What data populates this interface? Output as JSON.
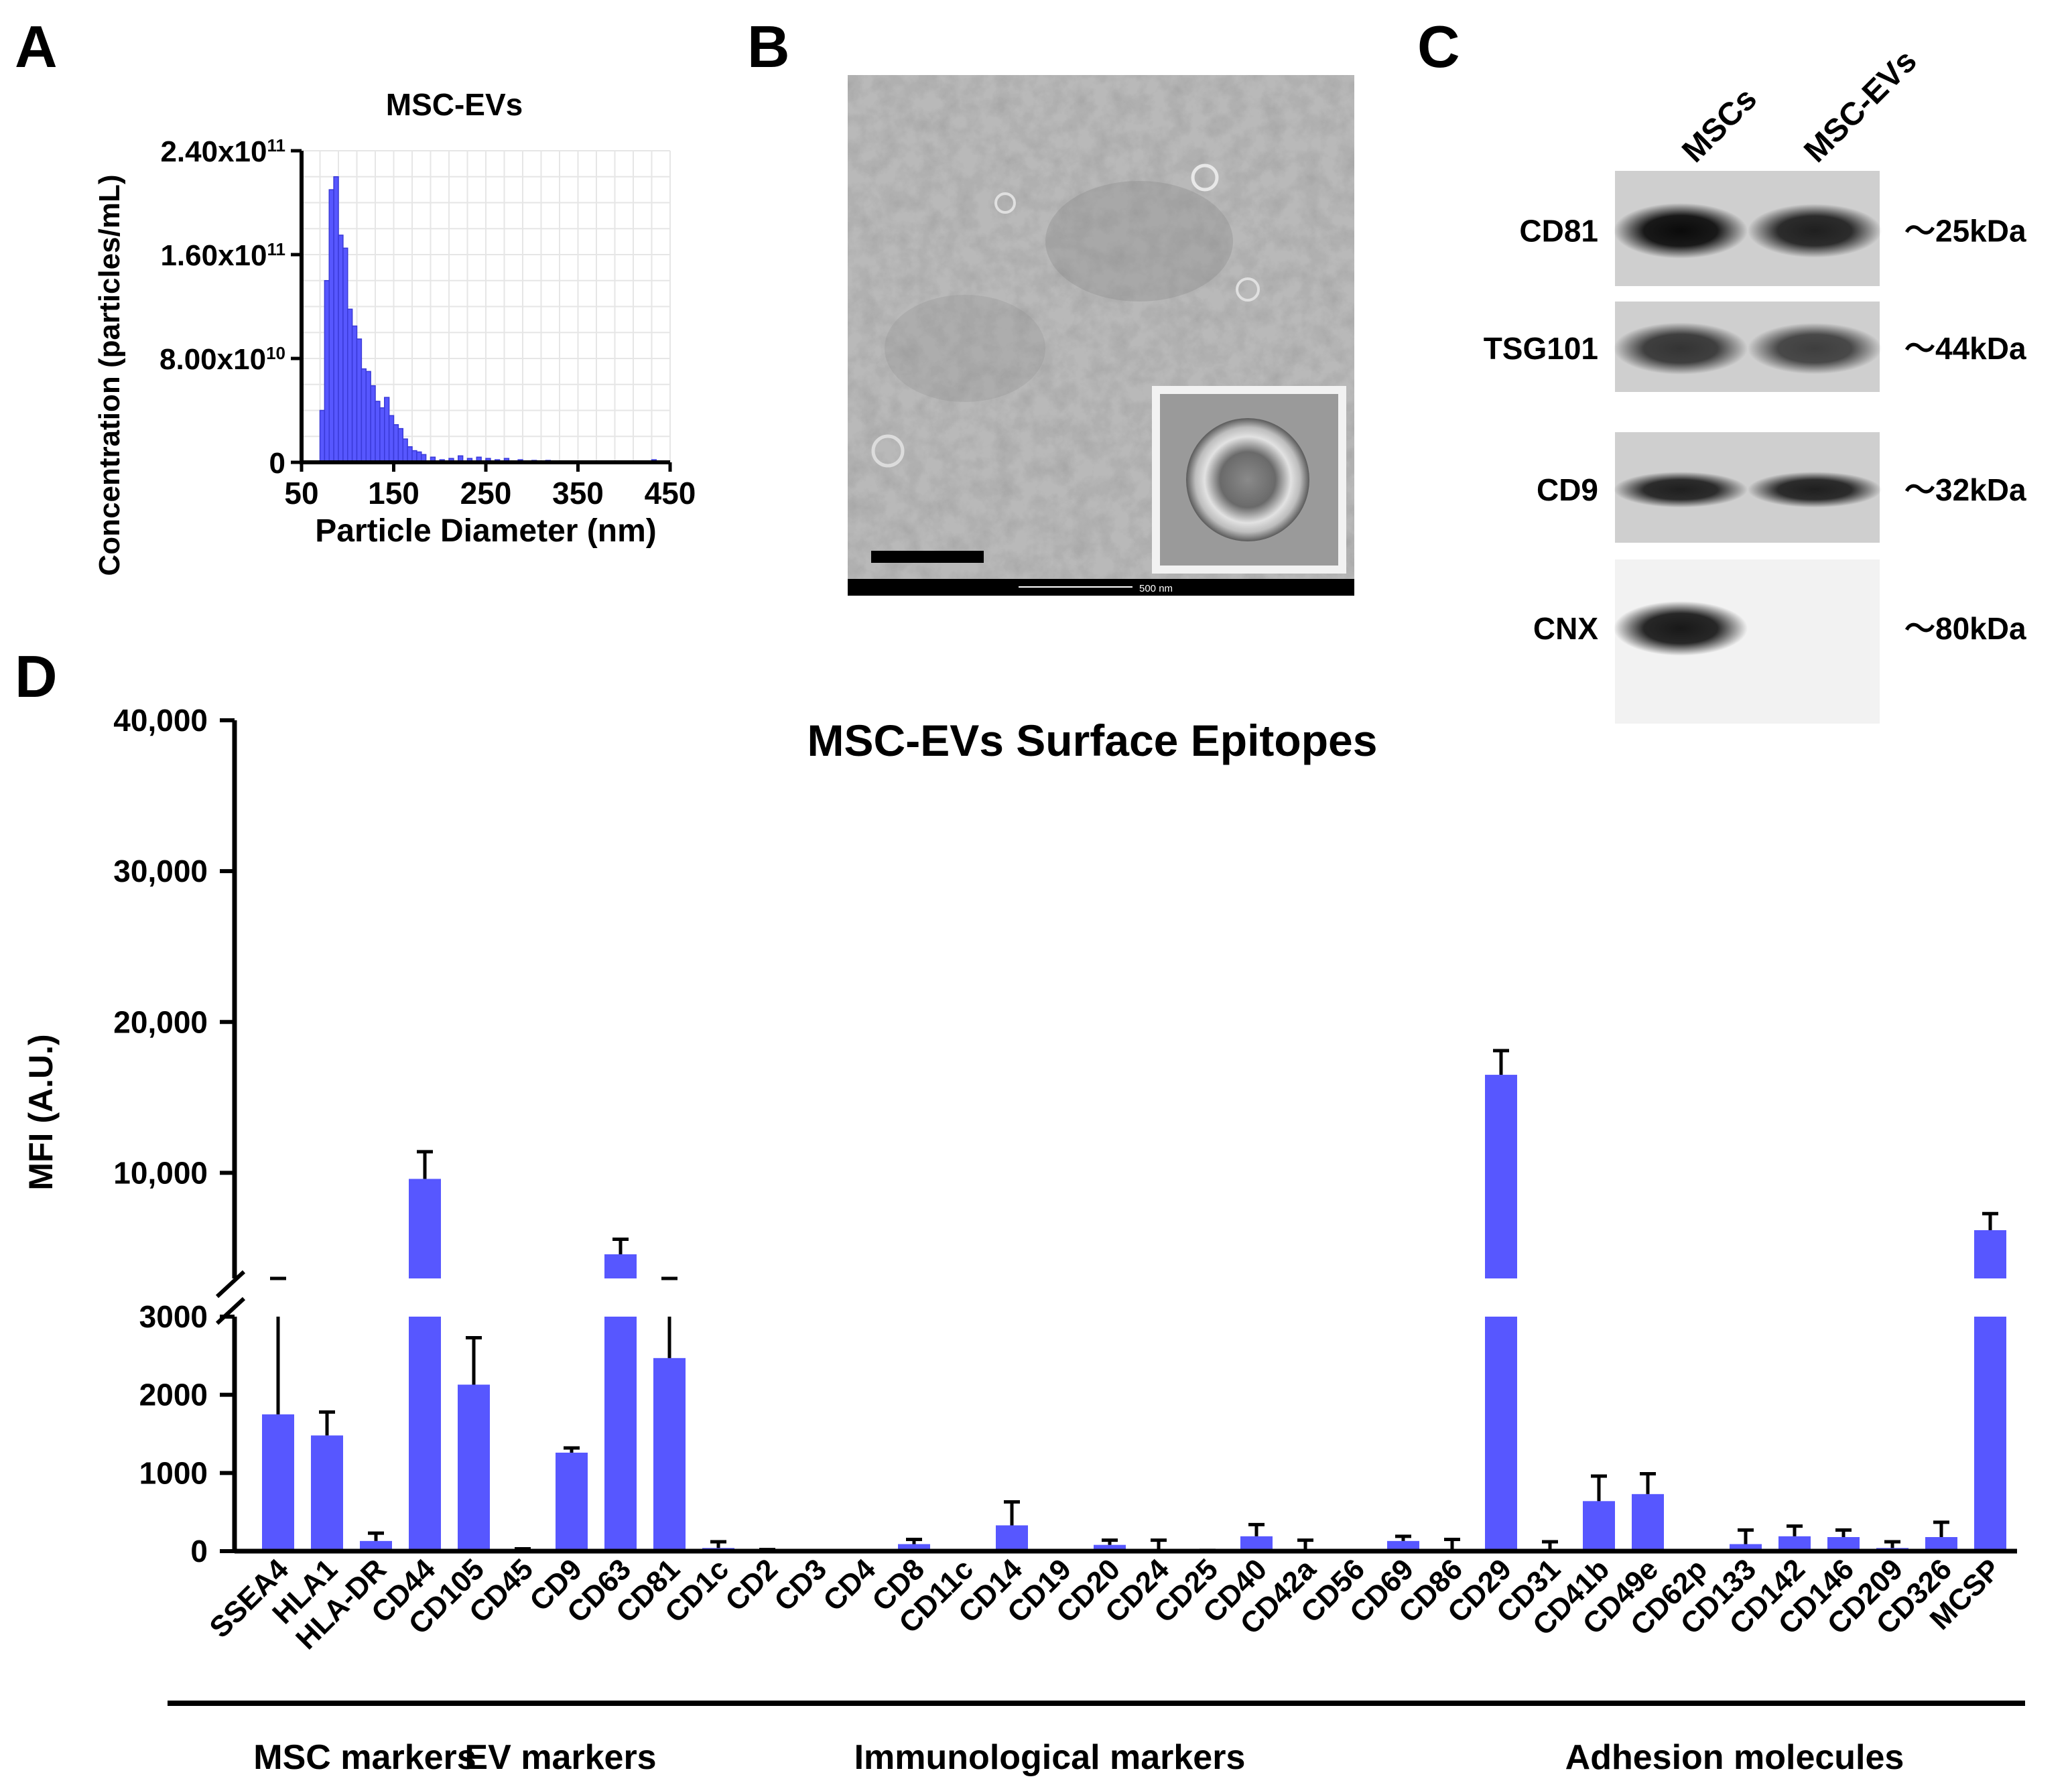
{
  "panel_letters": [
    "A",
    "B",
    "C",
    "D"
  ],
  "colors": {
    "bar": "#5757ff",
    "bar_edge": "#3a3ad8",
    "axis": "#000000",
    "grid": "#e6e6e6"
  },
  "panel_b": {
    "scale_bar_text": "500 nm"
  },
  "panel_c": {
    "columns": [
      "MSCs",
      "MSC-EVs"
    ],
    "rows": [
      {
        "label": "CD81",
        "size": "～25kDa",
        "msc": 0.95,
        "ev": 0.85
      },
      {
        "label": "TSG101",
        "size": "～44kDa",
        "msc": 0.75,
        "ev": 0.7
      },
      {
        "label": "CD9",
        "size": "～32kDa",
        "msc": 0.85,
        "ev": 0.85
      },
      {
        "label": "CNX",
        "size": "～80kDa",
        "msc": 0.9,
        "ev": 0.0
      }
    ]
  },
  "chart_data": [
    {
      "type": "bar",
      "title": "MSC-EVs",
      "xlabel": "Particle Diameter (nm)",
      "ylabel": "Concentration (particles/mL)",
      "xlim": [
        50,
        450
      ],
      "ylim": [
        0,
        240000000000
      ],
      "x_ticks": [
        "50",
        "150",
        "250",
        "350",
        "450"
      ],
      "y_ticks": [
        {
          "base": "0",
          "exp": ""
        },
        {
          "base": "8.00x10",
          "exp": "10"
        },
        {
          "base": "1.60x10",
          "exp": "11"
        },
        {
          "base": "2.40x10",
          "exp": "11"
        }
      ],
      "grid": true,
      "bin_width": 5,
      "bins": [
        [
          70,
          40000000000
        ],
        [
          75,
          140000000000
        ],
        [
          80,
          210000000000
        ],
        [
          85,
          220000000000
        ],
        [
          90,
          175000000000
        ],
        [
          95,
          165000000000
        ],
        [
          100,
          118000000000
        ],
        [
          105,
          105000000000
        ],
        [
          110,
          95000000000
        ],
        [
          115,
          72000000000
        ],
        [
          120,
          70000000000
        ],
        [
          125,
          59000000000
        ],
        [
          130,
          47000000000
        ],
        [
          135,
          42000000000
        ],
        [
          140,
          50000000000
        ],
        [
          145,
          36000000000
        ],
        [
          150,
          29000000000
        ],
        [
          155,
          26000000000
        ],
        [
          160,
          18000000000
        ],
        [
          165,
          12000000000
        ],
        [
          170,
          9000000000
        ],
        [
          175,
          8000000000
        ],
        [
          180,
          6000000000
        ],
        [
          190,
          4000000000
        ],
        [
          200,
          2000000000
        ],
        [
          210,
          3000000000
        ],
        [
          220,
          5000000000
        ],
        [
          230,
          3000000000
        ],
        [
          240,
          4000000000
        ],
        [
          250,
          3000000000
        ],
        [
          260,
          2000000000
        ],
        [
          270,
          3000000000
        ],
        [
          285,
          2000000000
        ],
        [
          300,
          1500000000
        ],
        [
          315,
          1500000000
        ],
        [
          430,
          2000000000
        ]
      ]
    },
    {
      "type": "bar",
      "title": "MSC-EVs Surface Epitopes",
      "ylabel": "MFI (A.U.)",
      "y_axis_break": {
        "lower": [
          0,
          3000
        ],
        "upper": [
          3000,
          40000
        ]
      },
      "y_ticks_lower": [
        "0",
        "1000",
        "2000",
        "3000"
      ],
      "y_ticks_upper": [
        "10,000",
        "20,000",
        "30,000",
        "40,000"
      ],
      "categories": [
        "SSEA4",
        "HLA1",
        "HLA-DR",
        "CD44",
        "CD105",
        "CD45",
        "CD9",
        "CD63",
        "CD81",
        "CD1c",
        "CD2",
        "CD3",
        "CD4",
        "CD8",
        "CD11c",
        "CD14",
        "CD19",
        "CD20",
        "CD24",
        "CD25",
        "CD40",
        "CD42a",
        "CD56",
        "CD69",
        "CD86",
        "CD29",
        "CD31",
        "CD41b",
        "CD49e",
        "CD62p",
        "CD133",
        "CD142",
        "CD146",
        "CD209",
        "CD326",
        "MCSP"
      ],
      "values": [
        1750,
        1480,
        130,
        9600,
        2130,
        20,
        1260,
        4600,
        2470,
        40,
        10,
        0,
        0,
        90,
        0,
        330,
        0,
        80,
        20,
        0,
        190,
        10,
        0,
        130,
        30,
        16500,
        20,
        640,
        730,
        0,
        90,
        190,
        180,
        40,
        180,
        6200
      ],
      "errors": [
        3300,
        300,
        100,
        1800,
        600,
        10,
        60,
        1000,
        3300,
        80,
        10,
        0,
        0,
        60,
        0,
        300,
        0,
        60,
        120,
        10,
        150,
        130,
        0,
        60,
        120,
        1600,
        100,
        320,
        260,
        0,
        180,
        130,
        90,
        80,
        190,
        1100
      ],
      "groups": [
        {
          "label": "MSC markers",
          "from": 0,
          "to": 4
        },
        {
          "label": "EV markers",
          "from": 5,
          "to": 7
        },
        {
          "label": "Immunological markers",
          "from": 8,
          "to": 24
        },
        {
          "label": "Adhesion molecules",
          "from": 25,
          "to": 35
        }
      ]
    }
  ]
}
